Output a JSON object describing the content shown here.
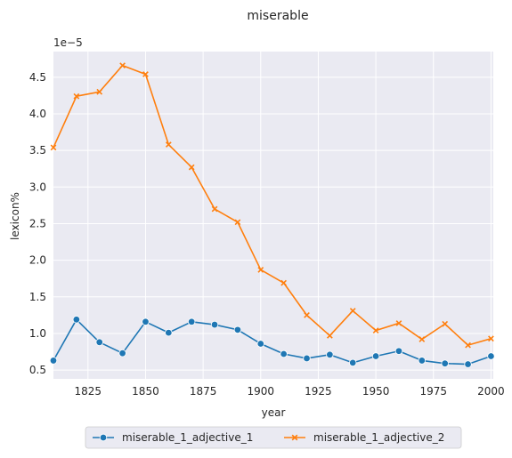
{
  "chart_data": {
    "type": "line",
    "title": "miserable",
    "xlabel": "year",
    "ylabel": "lexicon%",
    "y_offset_label": "1e−5",
    "xlim": [
      1810,
      2001
    ],
    "ylim": [
      0.38,
      4.85
    ],
    "x_ticks": [
      1825,
      1850,
      1875,
      1900,
      1925,
      1950,
      1975,
      2000
    ],
    "y_ticks": [
      0.5,
      1.0,
      1.5,
      2.0,
      2.5,
      3.0,
      3.5,
      4.0,
      4.5
    ],
    "y_tick_labels": [
      "0.5",
      "1.0",
      "1.5",
      "2.0",
      "2.5",
      "3.0",
      "3.5",
      "4.0",
      "4.5"
    ],
    "grid": true,
    "legend_position": "bottom-center, below plot",
    "x": [
      1810,
      1820,
      1830,
      1840,
      1850,
      1860,
      1870,
      1880,
      1890,
      1900,
      1910,
      1920,
      1930,
      1940,
      1950,
      1960,
      1970,
      1980,
      1990,
      2000
    ],
    "series": [
      {
        "name": "miserable_1_adjective_1",
        "color": "#1f77b4",
        "marker": "circle",
        "values": [
          0.63,
          1.19,
          0.88,
          0.73,
          1.16,
          1.01,
          1.16,
          1.12,
          1.05,
          0.86,
          0.72,
          0.66,
          0.71,
          0.6,
          0.69,
          0.76,
          0.63,
          0.59,
          0.58,
          0.69
        ]
      },
      {
        "name": "miserable_1_adjective_2",
        "color": "#ff7f0e",
        "marker": "x",
        "values": [
          3.54,
          4.24,
          4.3,
          4.66,
          4.54,
          3.58,
          3.27,
          2.7,
          2.52,
          1.87,
          1.69,
          1.25,
          0.97,
          1.31,
          1.04,
          1.14,
          0.92,
          1.13,
          0.84,
          0.93
        ]
      }
    ]
  }
}
